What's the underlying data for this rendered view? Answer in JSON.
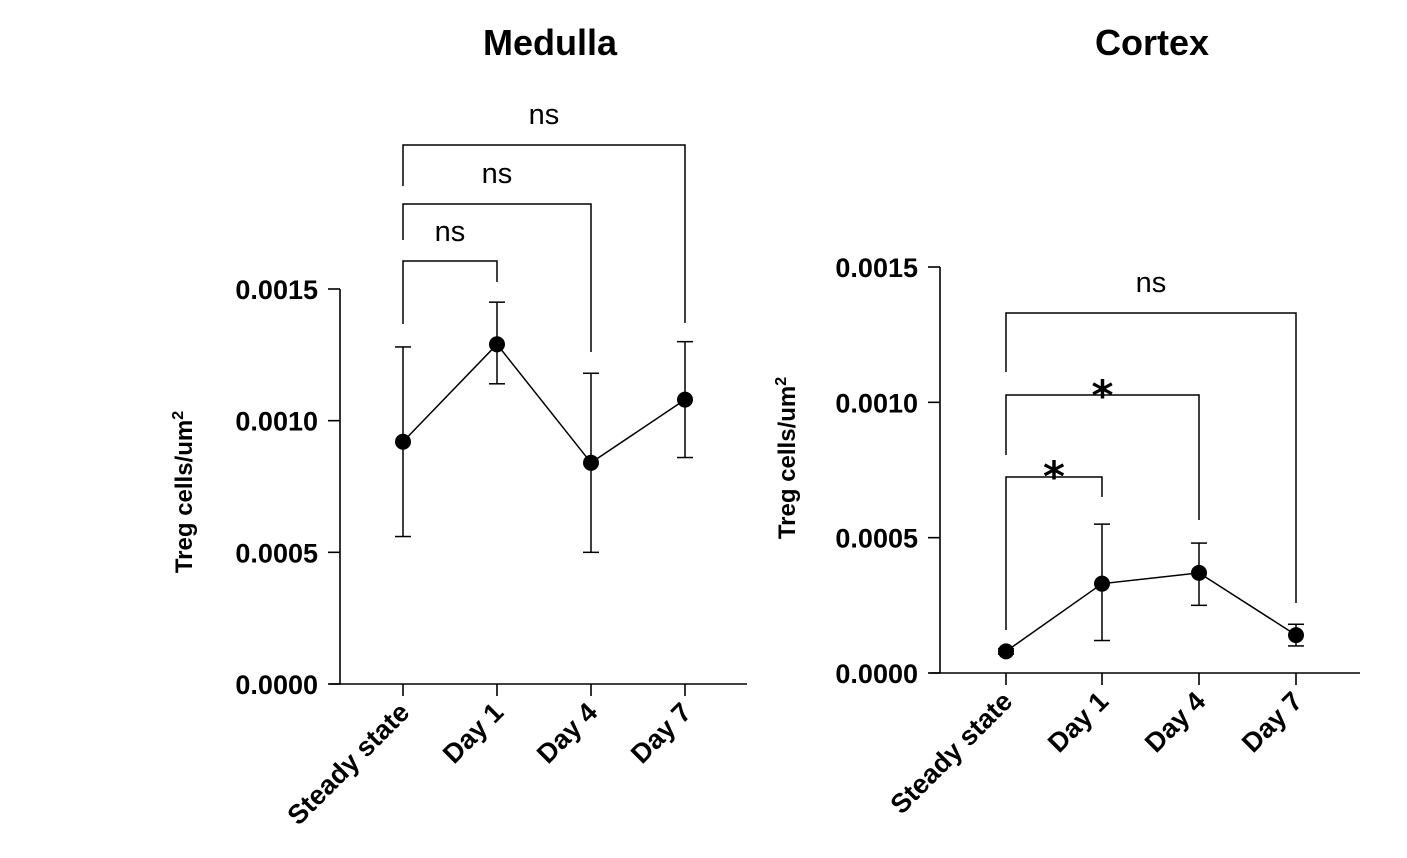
{
  "chart_data": [
    {
      "type": "line",
      "title": "Medulla",
      "ylabel": "Treg cells/um",
      "ylabel_superscript": "2",
      "categories": [
        "Steady state",
        "Day 1",
        "Day 4",
        "Day 7"
      ],
      "values": [
        0.00092,
        0.00129,
        0.00084,
        0.00108
      ],
      "error_low": [
        0.00056,
        0.00114,
        0.0005,
        0.00086
      ],
      "error_high": [
        0.00128,
        0.00145,
        0.00118,
        0.0013
      ],
      "ylim": [
        0,
        0.0015
      ],
      "yticks": [
        "0.0000",
        "0.0005",
        "0.0010",
        "0.0015"
      ],
      "yticks_values": [
        0,
        0.0005,
        0.001,
        0.0015
      ],
      "significance": [
        {
          "from": 0,
          "to": 1,
          "label": "ns"
        },
        {
          "from": 0,
          "to": 2,
          "label": "ns"
        },
        {
          "from": 0,
          "to": 3,
          "label": "ns"
        }
      ]
    },
    {
      "type": "line",
      "title": "Cortex",
      "ylabel": "Treg cells/um",
      "ylabel_superscript": "2",
      "categories": [
        "Steady state",
        "Day 1",
        "Day 4",
        "Day 7"
      ],
      "values": [
        8e-05,
        0.00033,
        0.00037,
        0.00014
      ],
      "error_low": [
        7e-05,
        0.00012,
        0.00025,
        0.0001
      ],
      "error_high": [
        9e-05,
        0.00055,
        0.00048,
        0.00018
      ],
      "ylim": [
        0,
        0.0015
      ],
      "yticks": [
        "0.0000",
        "0.0005",
        "0.0010",
        "0.0015"
      ],
      "yticks_values": [
        0,
        0.0005,
        0.001,
        0.0015
      ],
      "significance": [
        {
          "from": 0,
          "to": 1,
          "label": "*"
        },
        {
          "from": 0,
          "to": 2,
          "label": "*"
        },
        {
          "from": 0,
          "to": 3,
          "label": "ns"
        }
      ]
    }
  ]
}
